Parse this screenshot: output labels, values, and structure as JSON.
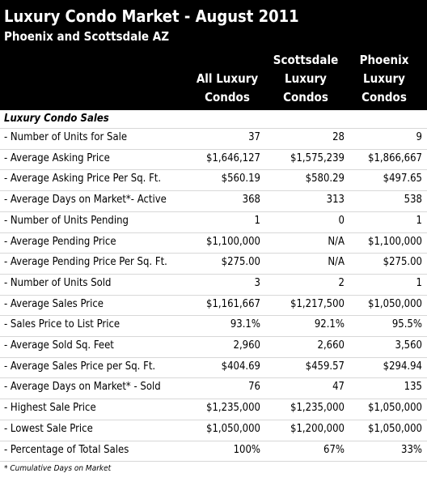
{
  "header": {
    "title": "Luxury Condo Market - August 2011",
    "subtitle": "Phoenix and Scottsdale AZ",
    "columns": [
      [
        "All Luxury",
        "Condos"
      ],
      [
        "Scottsdale",
        "Luxury",
        "Condos"
      ],
      [
        "Phoenix",
        "Luxury",
        "Condos"
      ]
    ]
  },
  "table": {
    "section": "Luxury Condo Sales",
    "rows": [
      [
        "- Number of Units for Sale",
        "37",
        "28",
        "9"
      ],
      [
        "- Average Asking Price",
        "$1,646,127",
        "$1,575,239",
        "$1,866,667"
      ],
      [
        "- Average Asking Price Per Sq. Ft.",
        "$560.19",
        "$580.29",
        "$497.65"
      ],
      [
        "- Average Days on Market*- Active",
        "368",
        "313",
        "538"
      ],
      [
        "- Number of Units Pending",
        "1",
        "0",
        "1"
      ],
      [
        "- Average Pending Price",
        "$1,100,000",
        "N/A",
        "$1,100,000"
      ],
      [
        "- Average Pending Price Per Sq. Ft.",
        "$275.00",
        "N/A",
        "$275.00"
      ],
      [
        "- Number of Units Sold",
        "3",
        "2",
        "1"
      ],
      [
        "- Average Sales Price",
        "$1,161,667",
        "$1,217,500",
        "$1,050,000"
      ],
      [
        "- Sales Price to List Price",
        "93.1%",
        "92.1%",
        "95.5%"
      ],
      [
        "- Average Sold Sq. Feet",
        "2,960",
        "2,660",
        "3,560"
      ],
      [
        "- Average Sales Price per Sq. Ft.",
        "$404.69",
        "$459.57",
        "$294.94"
      ],
      [
        "- Average Days on Market* - Sold",
        "76",
        "47",
        "135"
      ],
      [
        "- Highest Sale Price",
        "$1,235,000",
        "$1,235,000",
        "$1,050,000"
      ],
      [
        "- Lowest Sale Price",
        "$1,050,000",
        "$1,200,000",
        "$1,050,000"
      ],
      [
        "- Percentage of Total Sales",
        "100%",
        "67%",
        "33%"
      ]
    ]
  },
  "footnote": "* Cumulative Days on Market"
}
